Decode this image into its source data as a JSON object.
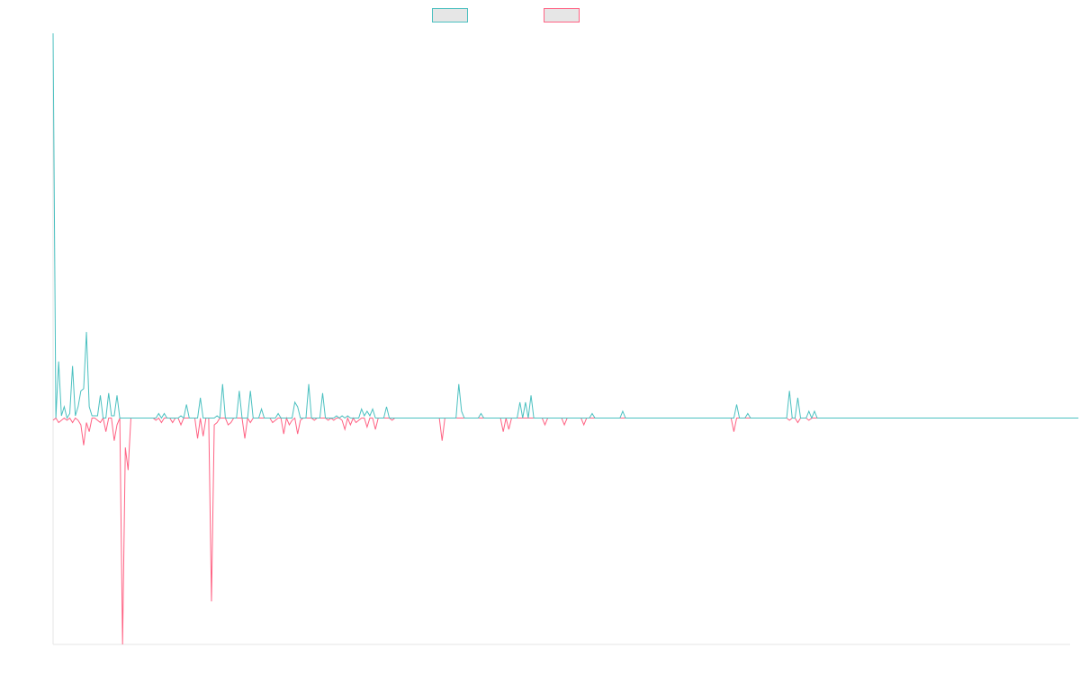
{
  "chart_data": {
    "type": "line",
    "title": "",
    "xlabel": "",
    "ylabel": "",
    "legend_position": "top-center",
    "grid": false,
    "xlim": [
      0,
      366
    ],
    "ylim": [
      -10,
      17
    ],
    "colors": {
      "series1": "#4bc0c0",
      "series2": "#ff6384",
      "legend_fill": "#e6e6e6",
      "axis": "#e6e6e6"
    },
    "series": [
      {
        "name": "",
        "color": "#4bc0c0",
        "values": [
          17,
          0,
          2.5,
          0.1,
          0.5,
          0,
          0.2,
          2.3,
          0.1,
          0.5,
          1.2,
          1.3,
          3.8,
          0.5,
          0.1,
          0.1,
          0.1,
          1,
          0,
          0,
          1.1,
          0.1,
          0.1,
          1,
          0,
          0,
          0,
          0,
          0,
          0,
          0,
          0,
          0,
          0,
          0,
          0,
          0,
          0,
          0.2,
          0,
          0.2,
          0,
          0,
          0,
          0,
          0,
          0.1,
          0,
          0.6,
          0,
          0,
          0,
          0,
          0.9,
          0,
          0,
          0,
          0,
          0,
          0.1,
          0,
          1.5,
          0,
          0,
          0,
          0,
          0,
          1.2,
          0,
          0,
          0,
          1.2,
          0,
          0,
          0,
          0.4,
          0,
          0,
          0,
          0,
          0,
          0.2,
          0,
          0,
          0,
          0,
          0,
          0.7,
          0.5,
          0,
          0,
          0,
          1.5,
          0,
          0,
          0,
          0,
          1.1,
          0,
          0,
          0,
          0,
          0.1,
          0,
          0.1,
          0,
          0.1,
          0,
          0,
          0,
          0,
          0.4,
          0.1,
          0.3,
          0.1,
          0.4,
          0,
          0,
          0,
          0,
          0.5,
          0,
          0,
          0,
          0,
          0,
          0,
          0,
          0,
          0,
          0,
          0,
          0,
          0,
          0,
          0,
          0,
          0,
          0,
          0,
          0,
          0,
          0,
          0,
          0,
          0,
          1.5,
          0.3,
          0,
          0,
          0,
          0,
          0,
          0,
          0.2,
          0,
          0,
          0,
          0,
          0,
          0,
          0,
          0,
          0,
          0,
          0,
          0,
          0,
          0.7,
          0,
          0.7,
          0,
          1,
          0,
          0,
          0,
          0,
          0,
          0,
          0,
          0,
          0,
          0,
          0,
          0,
          0,
          0,
          0,
          0,
          0,
          0,
          0,
          0,
          0,
          0.2,
          0,
          0,
          0,
          0,
          0,
          0,
          0,
          0,
          0,
          0,
          0.3,
          0,
          0,
          0,
          0,
          0,
          0,
          0,
          0,
          0,
          0,
          0,
          0,
          0,
          0,
          0,
          0,
          0,
          0,
          0,
          0,
          0,
          0,
          0,
          0,
          0,
          0,
          0,
          0,
          0,
          0,
          0,
          0,
          0,
          0,
          0,
          0,
          0,
          0,
          0,
          0,
          0.6,
          0,
          0,
          0,
          0.2,
          0,
          0,
          0,
          0,
          0,
          0,
          0,
          0,
          0,
          0,
          0,
          0,
          0,
          0,
          1.2,
          0,
          0,
          0.9,
          0,
          0,
          0,
          0.3,
          0,
          0.3,
          0,
          0,
          0,
          0,
          0,
          0,
          0,
          0,
          0,
          0,
          0,
          0,
          0,
          0,
          0,
          0,
          0,
          0,
          0,
          0,
          0,
          0,
          0,
          0,
          0,
          0,
          0,
          0,
          0,
          0,
          0,
          0,
          0,
          0,
          0,
          0,
          0,
          0,
          0,
          0,
          0,
          0,
          0,
          0,
          0,
          0,
          0,
          0,
          0,
          0,
          0,
          0,
          0,
          0,
          0,
          0,
          0,
          0,
          0,
          0,
          0,
          0,
          0,
          0,
          0,
          0,
          0,
          0,
          0,
          0,
          0,
          0,
          0,
          0,
          0,
          0,
          0,
          0,
          0,
          0,
          0,
          0,
          0,
          0,
          0,
          0,
          0,
          0,
          0,
          0,
          0,
          0,
          0,
          0,
          0
        ]
      },
      {
        "name": "",
        "color": "#ff6384",
        "values": [
          -0.1,
          0,
          -0.2,
          -0.1,
          0,
          -0.1,
          0,
          -0.2,
          0,
          -0.1,
          -0.3,
          -1.2,
          -0.2,
          -0.6,
          0,
          0,
          -0.1,
          -0.2,
          0,
          -0.6,
          0,
          0,
          -1,
          -0.3,
          0,
          -10,
          -1.3,
          -2.3,
          0,
          0,
          0,
          0,
          0,
          0,
          0,
          0,
          0,
          -0.1,
          0,
          -0.2,
          0,
          0,
          0,
          -0.2,
          0,
          0,
          -0.3,
          0,
          0,
          0,
          0,
          0,
          -0.9,
          0,
          -0.8,
          0,
          0,
          -8.1,
          -0.3,
          -0.2,
          0,
          0,
          0,
          -0.3,
          -0.2,
          0,
          0,
          0,
          0,
          -0.9,
          0,
          -0.2,
          0,
          0,
          0,
          0,
          0,
          0,
          0,
          -0.2,
          -0.1,
          0,
          0,
          -0.7,
          0,
          -0.3,
          -0.1,
          0,
          -0.7,
          -0.1,
          0,
          0,
          0,
          0,
          -0.1,
          0,
          0,
          0,
          0,
          -0.1,
          0,
          -0.1,
          0,
          0,
          -0.1,
          -0.5,
          0,
          -0.3,
          0,
          -0.2,
          -0.1,
          0,
          0,
          -0.4,
          0,
          0,
          -0.5,
          0,
          0,
          0,
          0,
          0,
          -0.1,
          0,
          0,
          0,
          0,
          0,
          0,
          0,
          0,
          0,
          0,
          0,
          0,
          0,
          0,
          0,
          0,
          0,
          -1,
          0,
          0,
          0,
          0,
          0,
          0,
          0,
          0,
          0,
          0,
          0,
          0,
          0,
          0,
          0,
          0,
          0,
          0,
          0,
          0,
          0,
          -0.6,
          0,
          -0.5,
          0,
          0,
          0,
          0,
          0,
          0,
          0,
          0,
          0,
          0,
          0,
          0,
          -0.3,
          0,
          0,
          0,
          0,
          0,
          0,
          -0.3,
          0,
          0,
          0,
          0,
          0,
          0,
          -0.3,
          0,
          0,
          0,
          0,
          0,
          0,
          0,
          0,
          0,
          0,
          0,
          0,
          0,
          0,
          0,
          0,
          0,
          0,
          0,
          0,
          0,
          0,
          0,
          0,
          0,
          0,
          0,
          0,
          0,
          0,
          0,
          0,
          0,
          0,
          0,
          0,
          0,
          0,
          0,
          0,
          0,
          0,
          0,
          0,
          0,
          0,
          0,
          0,
          0,
          0,
          0,
          0,
          0,
          -0.6,
          0,
          0,
          0,
          0,
          0,
          0,
          0,
          0,
          0,
          0,
          0,
          0,
          0,
          0,
          0,
          0,
          0,
          0,
          0,
          -0.1,
          0,
          0,
          -0.2,
          0,
          0,
          0,
          -0.1,
          0,
          0,
          0,
          0,
          0,
          0,
          0,
          0,
          0,
          0,
          0,
          0,
          0,
          0,
          0,
          0,
          0,
          0,
          0,
          0,
          0,
          0,
          0,
          0,
          0,
          0,
          0,
          0,
          0,
          0,
          0,
          0,
          0,
          0,
          0,
          0,
          0,
          0,
          0,
          0,
          0,
          0,
          0,
          0,
          0,
          0,
          0,
          0,
          0,
          0,
          0,
          0,
          0,
          0,
          0,
          0,
          0,
          0,
          0,
          0,
          0,
          0,
          0,
          0,
          0,
          0,
          0,
          0,
          0,
          0,
          0,
          0,
          0,
          0,
          0,
          0,
          0,
          0,
          0,
          0,
          0,
          0,
          0,
          0,
          0,
          0,
          0,
          0,
          0,
          0,
          0,
          0,
          0,
          0,
          0,
          0
        ]
      }
    ]
  }
}
